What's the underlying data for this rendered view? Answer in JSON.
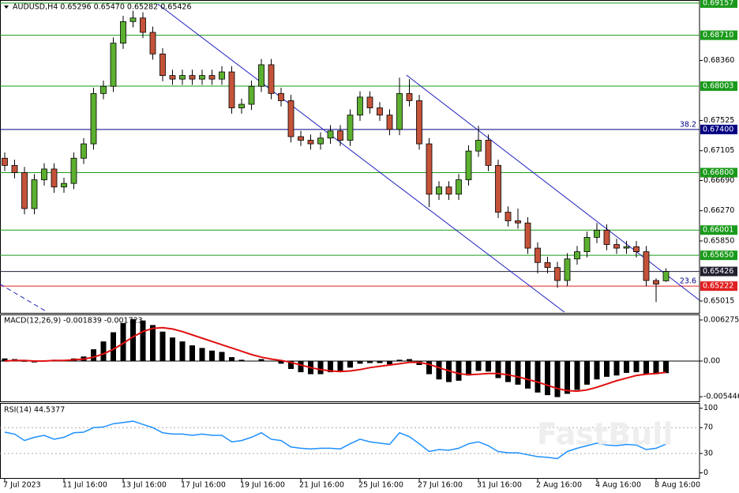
{
  "chart_data": [
    {
      "type": "candlestick",
      "title": "AUDUSD,H4  0.65296 0.65470 0.65282 0.65426",
      "up_color": "#5cb030",
      "down_color": "#c4533a",
      "ylim": [
        0.6485,
        0.692
      ],
      "yticks": [
        {
          "value": 0.6836,
          "label": "0.68360"
        },
        {
          "value": 0.67525,
          "label": "0.67525"
        },
        {
          "value": 0.67105,
          "label": "0.67105"
        },
        {
          "value": 0.6669,
          "label": "0.66690"
        },
        {
          "value": 0.6627,
          "label": "0.66270"
        },
        {
          "value": 0.6585,
          "label": "0.65850"
        },
        {
          "value": 0.65015,
          "label": "0.65015"
        }
      ],
      "levels": [
        {
          "value": 0.69157,
          "label": "0.69157",
          "color": "#1a9a1a"
        },
        {
          "value": 0.6871,
          "label": "0.68710",
          "color": "#1a9a1a"
        },
        {
          "value": 0.68003,
          "label": "0.68003",
          "color": "#1a9a1a"
        },
        {
          "value": 0.674,
          "label": "0.67400",
          "color": "#000080",
          "tag": "38.2"
        },
        {
          "value": 0.668,
          "label": "0.66800",
          "color": "#1a9a1a"
        },
        {
          "value": 0.66001,
          "label": "0.66001",
          "color": "#1a9a1a"
        },
        {
          "value": 0.6565,
          "label": "0.65650",
          "color": "#1a9a1a"
        },
        {
          "value": 0.65426,
          "label": "0.65426",
          "color": "#202030"
        },
        {
          "value": 0.65222,
          "label": "0.65222",
          "color": "#e02020",
          "tag": "23.6"
        }
      ],
      "trendlines": [
        {
          "x": [
            15.5,
            56.7
          ],
          "y": [
            0.69145,
            0.64861
          ],
          "color": "#2020c0",
          "dash": false
        },
        {
          "x": [
            40.7,
            70.4
          ],
          "y": [
            0.68156,
            0.65026
          ],
          "color": "#2020c0",
          "dash": false
        },
        {
          "x": [
            -0.48,
            4.32
          ],
          "y": [
            0.6525,
            0.64861
          ],
          "color": "#2020c0",
          "dash": true
        }
      ],
      "open": [
        0.67,
        0.669,
        0.668,
        0.663,
        0.667,
        0.6685,
        0.666,
        0.6665,
        0.67,
        0.672,
        0.679,
        0.68,
        0.686,
        0.689,
        0.6895,
        0.6875,
        0.6845,
        0.6815,
        0.681,
        0.6815,
        0.681,
        0.6815,
        0.681,
        0.682,
        0.677,
        0.6775,
        0.68,
        0.683,
        0.679,
        0.678,
        0.673,
        0.6725,
        0.672,
        0.6728,
        0.6738,
        0.6725,
        0.676,
        0.6785,
        0.677,
        0.676,
        0.674,
        0.679,
        0.678,
        0.672,
        0.665,
        0.666,
        0.665,
        0.667,
        0.671,
        0.6725,
        0.669,
        0.6625,
        0.6613,
        0.661,
        0.6575,
        0.6555,
        0.6548,
        0.653,
        0.656,
        0.657,
        0.659,
        0.66,
        0.658,
        0.6575,
        0.6577,
        0.657,
        0.653,
        0.65296
      ],
      "high": [
        0.6708,
        0.6698,
        0.6688,
        0.6678,
        0.6693,
        0.6693,
        0.6673,
        0.6708,
        0.6728,
        0.6798,
        0.6808,
        0.6868,
        0.6898,
        0.6905,
        0.6903,
        0.6883,
        0.6853,
        0.6823,
        0.6823,
        0.6823,
        0.6823,
        0.6823,
        0.6828,
        0.6828,
        0.6783,
        0.6808,
        0.6838,
        0.6838,
        0.6798,
        0.6788,
        0.6738,
        0.6733,
        0.6736,
        0.6746,
        0.6746,
        0.6768,
        0.6793,
        0.6793,
        0.6778,
        0.6768,
        0.6812,
        0.681,
        0.6788,
        0.6728,
        0.6668,
        0.6668,
        0.6678,
        0.6718,
        0.6745,
        0.6733,
        0.6698,
        0.6633,
        0.663,
        0.6618,
        0.6583,
        0.6563,
        0.6556,
        0.6568,
        0.6578,
        0.6598,
        0.661,
        0.6608,
        0.6588,
        0.6585,
        0.6585,
        0.6578,
        0.6533,
        0.6547
      ],
      "low": [
        0.6682,
        0.6672,
        0.6622,
        0.6622,
        0.6662,
        0.6652,
        0.6652,
        0.6657,
        0.6692,
        0.6712,
        0.6782,
        0.6792,
        0.6852,
        0.6882,
        0.6867,
        0.6837,
        0.6807,
        0.6802,
        0.6802,
        0.6802,
        0.6802,
        0.6802,
        0.6802,
        0.6762,
        0.6762,
        0.6767,
        0.6792,
        0.6782,
        0.6772,
        0.6722,
        0.6717,
        0.6712,
        0.6712,
        0.672,
        0.6717,
        0.6717,
        0.6752,
        0.6762,
        0.6752,
        0.6732,
        0.6732,
        0.6772,
        0.6712,
        0.6632,
        0.6642,
        0.6642,
        0.6642,
        0.6662,
        0.6702,
        0.6682,
        0.6617,
        0.6605,
        0.6602,
        0.6567,
        0.654,
        0.654,
        0.652,
        0.6522,
        0.6552,
        0.6562,
        0.6582,
        0.6572,
        0.6567,
        0.6567,
        0.6562,
        0.6522,
        0.65,
        0.65282
      ],
      "close": [
        0.669,
        0.668,
        0.663,
        0.667,
        0.6685,
        0.666,
        0.6665,
        0.67,
        0.672,
        0.679,
        0.68,
        0.686,
        0.689,
        0.6895,
        0.6875,
        0.6845,
        0.6815,
        0.681,
        0.6815,
        0.681,
        0.6815,
        0.681,
        0.682,
        0.677,
        0.6775,
        0.68,
        0.683,
        0.679,
        0.678,
        0.673,
        0.6725,
        0.672,
        0.6728,
        0.6738,
        0.6725,
        0.676,
        0.6785,
        0.677,
        0.676,
        0.674,
        0.679,
        0.678,
        0.672,
        0.665,
        0.666,
        0.665,
        0.667,
        0.671,
        0.6725,
        0.669,
        0.6625,
        0.6613,
        0.661,
        0.6575,
        0.6555,
        0.6548,
        0.653,
        0.656,
        0.657,
        0.659,
        0.66,
        0.658,
        0.6575,
        0.6577,
        0.657,
        0.653,
        0.6525,
        0.65426
      ],
      "watermark": "FastBull"
    },
    {
      "type": "bar",
      "title": "MACD(12,26,9) -0.001839 -0.001723",
      "color": "#000000",
      "signal_color": "#e01010",
      "ylim": [
        -0.00627,
        0.00712
      ],
      "yticks": [
        0.006275,
        {
          "value": 0,
          "label": "0.00"
        },
        -0.005446
      ],
      "values": [
        0.0004,
        0.0003,
        -0.0001,
        -0.0002,
        0.0001,
        0.0002,
        0.0001,
        0.0004,
        0.0007,
        0.0018,
        0.003,
        0.0044,
        0.0058,
        0.0064,
        0.0062,
        0.0055,
        0.0045,
        0.0036,
        0.003,
        0.0024,
        0.002,
        0.0016,
        0.0014,
        0.0006,
        0.0002,
        0.0,
        0.0003,
        0.0,
        -0.0004,
        -0.0012,
        -0.0017,
        -0.002,
        -0.002,
        -0.0017,
        -0.0016,
        -0.001,
        -0.0004,
        -0.0003,
        -0.0003,
        -0.0005,
        0.0002,
        0.0003,
        -0.0006,
        -0.002,
        -0.0028,
        -0.0032,
        -0.003,
        -0.0022,
        -0.0015,
        -0.0016,
        -0.0026,
        -0.0032,
        -0.0036,
        -0.0042,
        -0.0048,
        -0.0052,
        -0.0055,
        -0.005,
        -0.0044,
        -0.0036,
        -0.0028,
        -0.0024,
        -0.0022,
        -0.0018,
        -0.0017,
        -0.002,
        -0.002,
        -0.001839
      ],
      "signal": [
        0.0,
        0.0001,
        0.0001,
        0.0,
        0.0,
        0.0001,
        0.0001,
        0.0002,
        0.0003,
        0.0006,
        0.0011,
        0.0018,
        0.0027,
        0.0037,
        0.0045,
        0.005,
        0.0051,
        0.0049,
        0.0045,
        0.004,
        0.0035,
        0.003,
        0.0025,
        0.002,
        0.0015,
        0.001,
        0.0006,
        0.0003,
        0.0001,
        -0.0002,
        -0.0006,
        -0.001,
        -0.0013,
        -0.0015,
        -0.0016,
        -0.0015,
        -0.0013,
        -0.001,
        -0.0008,
        -0.0006,
        -0.0004,
        -0.0002,
        -0.0002,
        -0.0005,
        -0.001,
        -0.0015,
        -0.0019,
        -0.0021,
        -0.002,
        -0.0019,
        -0.0019,
        -0.0021,
        -0.0024,
        -0.0028,
        -0.0032,
        -0.0037,
        -0.0042,
        -0.0045,
        -0.0046,
        -0.0044,
        -0.004,
        -0.0035,
        -0.003,
        -0.0026,
        -0.0022,
        -0.002,
        -0.0019,
        -0.001723
      ]
    },
    {
      "type": "line",
      "title": "RSI(14) 44.5377",
      "color": "#1e90ff",
      "ylim": [
        -8,
        107
      ],
      "yticks": [
        100,
        70,
        30,
        0
      ],
      "levels": [
        70,
        30
      ],
      "values": [
        63,
        60,
        50,
        55,
        58,
        52,
        55,
        62,
        63,
        70,
        71,
        76,
        78,
        80,
        75,
        70,
        62,
        60,
        60,
        58,
        60,
        58,
        58,
        48,
        50,
        55,
        62,
        52,
        50,
        40,
        38,
        37,
        38,
        38,
        37,
        45,
        52,
        48,
        46,
        44,
        62,
        56,
        45,
        33,
        36,
        35,
        38,
        45,
        48,
        42,
        33,
        31,
        31,
        28,
        25,
        24,
        22,
        33,
        38,
        42,
        46,
        43,
        42,
        44,
        43,
        36,
        38,
        44.5377
      ],
      "xticks": [
        {
          "value": 0,
          "label": "7 Jul 2023"
        },
        {
          "value": 6,
          "label": "11 Jul 16:00"
        },
        {
          "value": 12,
          "label": "13 Jul 16:00"
        },
        {
          "value": 18,
          "label": "17 Jul 16:00"
        },
        {
          "value": 24,
          "label": "19 Jul 16:00"
        },
        {
          "value": 30,
          "label": "21 Jul 16:00"
        },
        {
          "value": 36,
          "label": "25 Jul 16:00"
        },
        {
          "value": 42,
          "label": "27 Jul 16:00"
        },
        {
          "value": 48,
          "label": "31 Jul 16:00"
        },
        {
          "value": 54,
          "label": "2 Aug 16:00"
        },
        {
          "value": 60,
          "label": "4 Aug 16:00"
        },
        {
          "value": 66,
          "label": "8 Aug 16:00"
        }
      ]
    }
  ]
}
